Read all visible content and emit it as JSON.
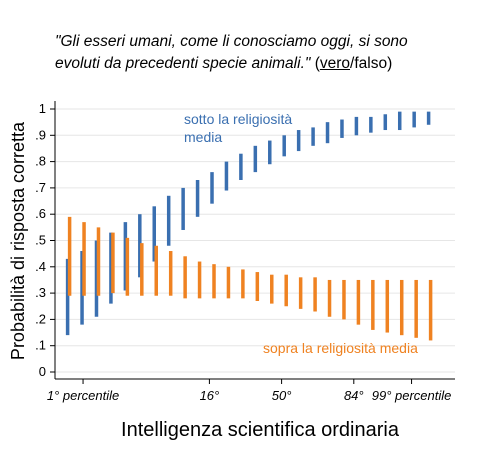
{
  "title": {
    "statement_line1": "\"Gli esseri umani, come li conosciamo oggi, si sono",
    "statement_line2": "evoluti da precedenti specie animali.\"",
    "answer_correct": "vero",
    "answer_rest": "/falso)"
  },
  "colors": {
    "blue": "#3a6fb0",
    "orange": "#ef8221",
    "grid": "#e6e6e6",
    "axis": "#000000"
  },
  "chart_data": {
    "type": "range-bar",
    "ylabel": "Probabilità di risposta corretta",
    "xlabel": "Intelligenza scientifica ordinaria",
    "ylim": [
      0,
      1
    ],
    "yticks": [
      0,
      0.1,
      0.2,
      0.3,
      0.4,
      0.5,
      0.6,
      0.7,
      0.8,
      0.9,
      1
    ],
    "ytick_labels": [
      "0",
      ".1",
      ".2",
      ".3",
      ".4",
      ".5",
      ".6",
      ".7",
      ".8",
      ".9",
      "1"
    ],
    "xlim": [
      0,
      100
    ],
    "xticks": [
      {
        "x": 5,
        "label": "1° percentile"
      },
      {
        "x": 40,
        "label": "16°"
      },
      {
        "x": 60,
        "label": "50°"
      },
      {
        "x": 80,
        "label": "84°"
      },
      {
        "x": 96,
        "label": "99° percentile"
      }
    ],
    "x": [
      1,
      5,
      9,
      13,
      17,
      21,
      25,
      29,
      33,
      37,
      41,
      45,
      49,
      53,
      57,
      61,
      65,
      69,
      73,
      77,
      81,
      85,
      89,
      93,
      97,
      101
    ],
    "series": [
      {
        "name": "sotto la religiosità media",
        "color": "#3a6fb0",
        "low": [
          0.14,
          0.18,
          0.21,
          0.26,
          0.31,
          0.36,
          0.42,
          0.48,
          0.54,
          0.59,
          0.64,
          0.69,
          0.73,
          0.76,
          0.79,
          0.82,
          0.84,
          0.86,
          0.87,
          0.89,
          0.9,
          0.91,
          0.92,
          0.92,
          0.93,
          0.94
        ],
        "high": [
          0.43,
          0.46,
          0.5,
          0.53,
          0.57,
          0.6,
          0.63,
          0.67,
          0.7,
          0.73,
          0.76,
          0.8,
          0.83,
          0.86,
          0.88,
          0.9,
          0.92,
          0.93,
          0.95,
          0.96,
          0.97,
          0.97,
          0.98,
          0.99,
          0.99,
          0.99
        ]
      },
      {
        "name": "sopra la religiosità media",
        "color": "#ef8221",
        "low": [
          0.29,
          0.29,
          0.29,
          0.3,
          0.29,
          0.29,
          0.29,
          0.29,
          0.28,
          0.28,
          0.28,
          0.28,
          0.28,
          0.27,
          0.26,
          0.25,
          0.24,
          0.23,
          0.21,
          0.2,
          0.18,
          0.16,
          0.15,
          0.14,
          0.13,
          0.12
        ],
        "high": [
          0.59,
          0.57,
          0.55,
          0.53,
          0.51,
          0.49,
          0.48,
          0.46,
          0.44,
          0.42,
          0.41,
          0.4,
          0.39,
          0.38,
          0.37,
          0.37,
          0.36,
          0.36,
          0.35,
          0.35,
          0.35,
          0.35,
          0.35,
          0.35,
          0.35,
          0.35
        ]
      }
    ],
    "annotations": [
      {
        "series": 0,
        "lines": [
          "sotto la religiosità",
          "media"
        ]
      },
      {
        "series": 1,
        "lines": [
          "sopra la religiosità media"
        ]
      }
    ],
    "grid": true
  }
}
